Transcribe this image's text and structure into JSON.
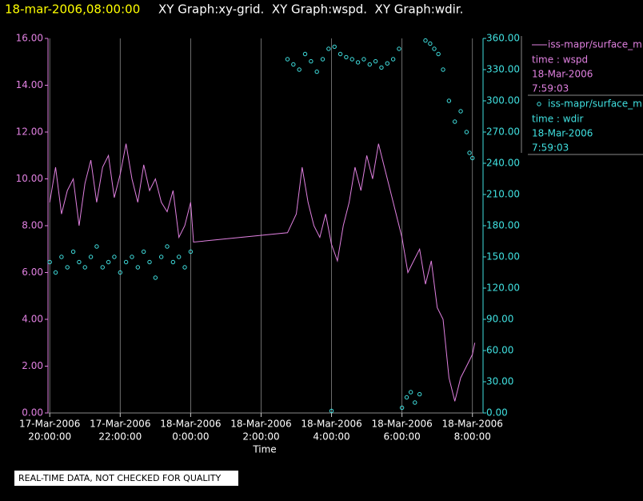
{
  "chart_data": {
    "type": "xy",
    "title": "18-mar-2006,08:00:00",
    "subtitle": "XY Graph:xy-grid.  XY Graph:wspd.  XY Graph:wdir.",
    "x_label": "Time",
    "footer": "REAL-TIME DATA, NOT CHECKED FOR QUALITY",
    "legend": "right",
    "grid": true,
    "xlim": [
      "2006-03-17T19:57",
      "2006-03-18T08:14"
    ],
    "xticks": [
      {
        "value": "2006-03-17T20:00",
        "label": [
          "17-Mar-2006",
          "20:00:00"
        ]
      },
      {
        "value": "2006-03-17T22:00",
        "label": [
          "17-Mar-2006",
          "22:00:00"
        ]
      },
      {
        "value": "2006-03-18T00:00",
        "label": [
          "18-Mar-2006",
          "0:00:00"
        ]
      },
      {
        "value": "2006-03-18T02:00",
        "label": [
          "18-Mar-2006",
          "2:00:00"
        ]
      },
      {
        "value": "2006-03-18T04:00",
        "label": [
          "18-Mar-2006",
          "4:00:00"
        ]
      },
      {
        "value": "2006-03-18T06:00",
        "label": [
          "18-Mar-2006",
          "6:00:00"
        ]
      },
      {
        "value": "2006-03-18T08:00",
        "label": [
          "18-Mar-2006",
          "8:00:00"
        ]
      }
    ],
    "ylim": [
      0,
      16
    ],
    "yticks": [
      {
        "value": 0,
        "label": "0.00"
      },
      {
        "value": 2,
        "label": "2.00"
      },
      {
        "value": 4,
        "label": "4.00"
      },
      {
        "value": 6,
        "label": "6.00"
      },
      {
        "value": 8,
        "label": "8.00"
      },
      {
        "value": 10,
        "label": "10.00"
      },
      {
        "value": 12,
        "label": "12.00"
      },
      {
        "value": 14,
        "label": "14.00"
      },
      {
        "value": 16,
        "label": "16.00"
      }
    ],
    "y2lim": [
      0,
      360
    ],
    "y2ticks": [
      {
        "value": 0,
        "label": "0.00"
      },
      {
        "value": 30,
        "label": "30.00"
      },
      {
        "value": 60,
        "label": "60.00"
      },
      {
        "value": 90,
        "label": "90.00"
      },
      {
        "value": 120,
        "label": "120.00"
      },
      {
        "value": 150,
        "label": "150.00"
      },
      {
        "value": 180,
        "label": "180.00"
      },
      {
        "value": 210,
        "label": "210.00"
      },
      {
        "value": 240,
        "label": "240.00"
      },
      {
        "value": 270,
        "label": "270.00"
      },
      {
        "value": 300,
        "label": "300.00"
      },
      {
        "value": 330,
        "label": "330.00"
      },
      {
        "value": 360,
        "label": "360.00"
      }
    ],
    "left_axis_color": "#e080e0",
    "right_axis_color": "#40e0e0",
    "series": [
      {
        "name": "iss-mapr/surface_m",
        "legend_lines": [
          "time : wspd",
          "18-Mar-2006",
          "7:59:03"
        ],
        "mark": "line",
        "color": "#e080e0",
        "x": [
          "2006-03-17T20:00",
          "2006-03-17T20:10",
          "2006-03-17T20:20",
          "2006-03-17T20:30",
          "2006-03-17T20:40",
          "2006-03-17T20:50",
          "2006-03-17T21:00",
          "2006-03-17T21:10",
          "2006-03-17T21:20",
          "2006-03-17T21:30",
          "2006-03-17T21:40",
          "2006-03-17T21:50",
          "2006-03-17T22:00",
          "2006-03-17T22:10",
          "2006-03-17T22:20",
          "2006-03-17T22:30",
          "2006-03-17T22:40",
          "2006-03-17T22:50",
          "2006-03-17T23:00",
          "2006-03-17T23:10",
          "2006-03-17T23:20",
          "2006-03-17T23:30",
          "2006-03-17T23:40",
          "2006-03-17T23:50",
          "2006-03-18T00:00",
          "2006-03-18T00:05",
          "2006-03-18T02:45",
          "2006-03-18T03:00",
          "2006-03-18T03:10",
          "2006-03-18T03:20",
          "2006-03-18T03:30",
          "2006-03-18T03:40",
          "2006-03-18T03:50",
          "2006-03-18T04:00",
          "2006-03-18T04:10",
          "2006-03-18T04:20",
          "2006-03-18T04:30",
          "2006-03-18T04:40",
          "2006-03-18T04:50",
          "2006-03-18T05:00",
          "2006-03-18T05:10",
          "2006-03-18T05:20",
          "2006-03-18T05:30",
          "2006-03-18T05:40",
          "2006-03-18T05:50",
          "2006-03-18T06:00",
          "2006-03-18T06:10",
          "2006-03-18T06:20",
          "2006-03-18T06:30",
          "2006-03-18T06:40",
          "2006-03-18T06:50",
          "2006-03-18T07:00",
          "2006-03-18T07:10",
          "2006-03-18T07:20",
          "2006-03-18T07:30",
          "2006-03-18T07:40",
          "2006-03-18T07:50",
          "2006-03-18T08:00",
          "2006-03-18T08:04"
        ],
        "values": [
          9.0,
          10.5,
          8.5,
          9.5,
          10.0,
          8.0,
          9.8,
          10.8,
          9.0,
          10.5,
          11.0,
          9.2,
          10.2,
          11.5,
          10.0,
          9.0,
          10.6,
          9.5,
          10.0,
          9.0,
          8.6,
          9.5,
          7.5,
          8.0,
          9.0,
          7.3,
          7.7,
          8.5,
          10.5,
          9.0,
          8.0,
          7.5,
          8.5,
          7.2,
          6.5,
          8.0,
          9.0,
          10.5,
          9.5,
          11.0,
          10.0,
          11.5,
          10.5,
          9.5,
          8.5,
          7.5,
          6.0,
          6.5,
          7.0,
          5.5,
          6.5,
          4.5,
          4.0,
          1.5,
          0.5,
          1.5,
          2.0,
          2.5,
          3.0
        ]
      },
      {
        "name": "iss-mapr/surface_m",
        "legend_lines": [
          "time : wdir",
          "18-Mar-2006",
          "7:59:03"
        ],
        "mark": "scatter",
        "axis": "y2",
        "color": "#40e0e0",
        "x": [
          "2006-03-17T20:00",
          "2006-03-17T20:10",
          "2006-03-17T20:20",
          "2006-03-17T20:30",
          "2006-03-17T20:40",
          "2006-03-17T20:50",
          "2006-03-17T21:00",
          "2006-03-17T21:10",
          "2006-03-17T21:20",
          "2006-03-17T21:30",
          "2006-03-17T21:40",
          "2006-03-17T21:50",
          "2006-03-17T22:00",
          "2006-03-17T22:10",
          "2006-03-17T22:20",
          "2006-03-17T22:30",
          "2006-03-17T22:40",
          "2006-03-17T22:50",
          "2006-03-17T23:00",
          "2006-03-17T23:10",
          "2006-03-17T23:20",
          "2006-03-17T23:30",
          "2006-03-17T23:40",
          "2006-03-17T23:50",
          "2006-03-18T00:00",
          "2006-03-18T02:45",
          "2006-03-18T02:55",
          "2006-03-18T03:05",
          "2006-03-18T03:15",
          "2006-03-18T03:25",
          "2006-03-18T03:35",
          "2006-03-18T03:45",
          "2006-03-18T03:55",
          "2006-03-18T04:00",
          "2006-03-18T04:05",
          "2006-03-18T04:15",
          "2006-03-18T04:25",
          "2006-03-18T04:35",
          "2006-03-18T04:45",
          "2006-03-18T04:55",
          "2006-03-18T05:05",
          "2006-03-18T05:15",
          "2006-03-18T05:25",
          "2006-03-18T05:35",
          "2006-03-18T05:45",
          "2006-03-18T05:55",
          "2006-03-18T06:00",
          "2006-03-18T06:08",
          "2006-03-18T06:15",
          "2006-03-18T06:22",
          "2006-03-18T06:30",
          "2006-03-18T06:40",
          "2006-03-18T06:48",
          "2006-03-18T06:55",
          "2006-03-18T07:02",
          "2006-03-18T07:10",
          "2006-03-18T07:20",
          "2006-03-18T07:30",
          "2006-03-18T07:40",
          "2006-03-18T07:50",
          "2006-03-18T07:55",
          "2006-03-18T08:00"
        ],
        "values": [
          145,
          135,
          150,
          140,
          155,
          145,
          140,
          150,
          160,
          140,
          145,
          150,
          135,
          145,
          150,
          140,
          155,
          145,
          130,
          150,
          160,
          145,
          150,
          140,
          155,
          340,
          335,
          330,
          345,
          338,
          328,
          340,
          350,
          2,
          352,
          345,
          342,
          340,
          337,
          340,
          335,
          338,
          332,
          336,
          340,
          350,
          5,
          15,
          20,
          10,
          18,
          358,
          355,
          350,
          345,
          330,
          300,
          280,
          290,
          270,
          250,
          245
        ]
      }
    ]
  }
}
